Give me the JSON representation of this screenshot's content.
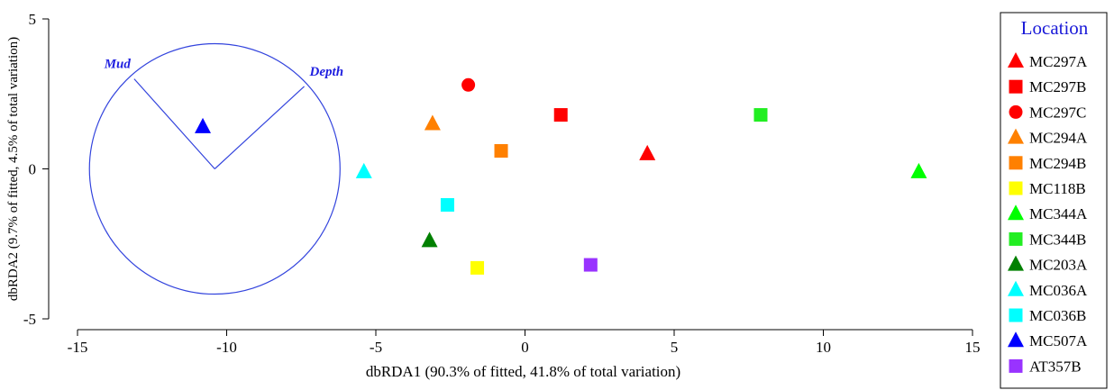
{
  "chart_data": {
    "type": "scatter",
    "xlabel": "dbRDA1 (90.3% of fitted, 41.8% of total variation)",
    "ylabel": "dbRDA2 (9.7% of fitted, 4.5% of total variation)",
    "xlim": [
      -15,
      15
    ],
    "ylim": [
      -5,
      5
    ],
    "x_ticks": [
      -15,
      -10,
      -5,
      0,
      5,
      10,
      15
    ],
    "y_ticks": [
      5,
      0,
      -5
    ],
    "x_tick_labels": [
      "-15",
      "-10",
      "-5",
      "0",
      "5",
      "10",
      "15"
    ],
    "y_tick_labels": [
      "5",
      "0",
      "-5"
    ],
    "legend": {
      "title": "Location",
      "placement": "right"
    },
    "vector_circle": {
      "center": [
        -10.4,
        0
      ],
      "radius": 4.2,
      "color": "#3344dd"
    },
    "vectors": [
      {
        "label": "Mud",
        "x": -13.1,
        "y": 3.0
      },
      {
        "label": "Depth",
        "x": -7.4,
        "y": 2.75
      }
    ],
    "series": [
      {
        "name": "MC297A",
        "shape": "triangle",
        "color": "#ff0000",
        "points": [
          [
            4.1,
            0.5
          ]
        ]
      },
      {
        "name": "MC297B",
        "shape": "square",
        "color": "#ff0000",
        "points": [
          [
            1.2,
            1.8
          ]
        ]
      },
      {
        "name": "MC297C",
        "shape": "circle",
        "color": "#ff0000",
        "points": [
          [
            -1.9,
            2.8
          ]
        ]
      },
      {
        "name": "MC294A",
        "shape": "triangle",
        "color": "#ff8000",
        "points": [
          [
            -3.1,
            1.5
          ]
        ]
      },
      {
        "name": "MC294B",
        "shape": "square",
        "color": "#ff8000",
        "points": [
          [
            -0.8,
            0.6
          ]
        ]
      },
      {
        "name": "MC118B",
        "shape": "square",
        "color": "#ffff00",
        "points": [
          [
            -1.6,
            -3.3
          ]
        ]
      },
      {
        "name": "MC344A",
        "shape": "triangle",
        "color": "#00ff00",
        "points": [
          [
            13.2,
            -0.1
          ]
        ]
      },
      {
        "name": "MC344B",
        "shape": "square",
        "color": "#22ee22",
        "points": [
          [
            7.9,
            1.8
          ]
        ]
      },
      {
        "name": "MC203A",
        "shape": "triangle",
        "color": "#008000",
        "points": [
          [
            -3.2,
            -2.4
          ]
        ]
      },
      {
        "name": "MC036A",
        "shape": "triangle",
        "color": "#00ffff",
        "points": [
          [
            -5.4,
            -0.1
          ]
        ]
      },
      {
        "name": "MC036B",
        "shape": "square",
        "color": "#00ffff",
        "points": [
          [
            -2.6,
            -1.2
          ]
        ]
      },
      {
        "name": "MC507A",
        "shape": "triangle",
        "color": "#0000ff",
        "points": [
          [
            -10.8,
            1.4
          ]
        ]
      },
      {
        "name": "AT357B",
        "shape": "square",
        "color": "#9933ff",
        "points": [
          [
            2.2,
            -3.2
          ]
        ]
      }
    ]
  }
}
